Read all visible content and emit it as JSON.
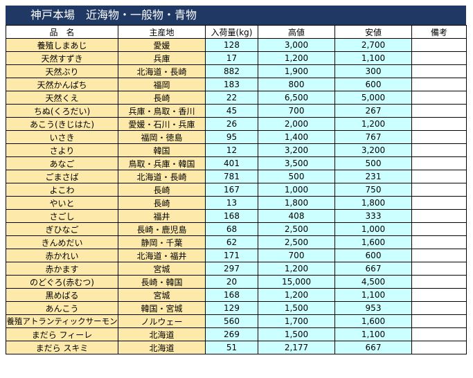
{
  "title": "神戸本場　近海物・一般物・青物",
  "headers": [
    "品　名",
    "主産地",
    "入荷量(kg)",
    "高値",
    "安値",
    "備考"
  ],
  "rows": [
    {
      "name": "養殖しまあじ",
      "origin": "愛媛",
      "qty": "128",
      "high": "3,000",
      "low": "2,700",
      "note": ""
    },
    {
      "name": "天然すずき",
      "origin": "兵庫",
      "qty": "17",
      "high": "1,200",
      "low": "1,100",
      "note": ""
    },
    {
      "name": "天然ぶり",
      "origin": "北海道・長崎",
      "qty": "882",
      "high": "1,900",
      "low": "300",
      "note": ""
    },
    {
      "name": "天然かんぱち",
      "origin": "福岡",
      "qty": "183",
      "high": "800",
      "low": "600",
      "note": ""
    },
    {
      "name": "天然くえ",
      "origin": "長崎",
      "qty": "22",
      "high": "6,500",
      "low": "5,000",
      "note": ""
    },
    {
      "name": "ちぬ(くろだい)",
      "origin": "兵庫・鳥取・香川",
      "qty": "45",
      "high": "700",
      "low": "267",
      "note": ""
    },
    {
      "name": "あこう(きじはた)",
      "origin": "愛媛・石川・兵庫",
      "qty": "26",
      "high": "2,000",
      "low": "1,200",
      "note": ""
    },
    {
      "name": "いさき",
      "origin": "福岡・徳島",
      "qty": "95",
      "high": "1,400",
      "low": "767",
      "note": ""
    },
    {
      "name": "さより",
      "origin": "韓国",
      "qty": "12",
      "high": "3,200",
      "low": "3,200",
      "note": ""
    },
    {
      "name": "あなご",
      "origin": "鳥取・兵庫・韓国",
      "qty": "401",
      "high": "3,500",
      "low": "500",
      "note": ""
    },
    {
      "name": "ごまさば",
      "origin": "北海道・長崎",
      "qty": "781",
      "high": "500",
      "low": "231",
      "note": ""
    },
    {
      "name": "よこわ",
      "origin": "長崎",
      "qty": "167",
      "high": "1,000",
      "low": "750",
      "note": ""
    },
    {
      "name": "やいと",
      "origin": "長崎",
      "qty": "13",
      "high": "1,800",
      "low": "1,800",
      "note": ""
    },
    {
      "name": "さごし",
      "origin": "福井",
      "qty": "168",
      "high": "408",
      "low": "333",
      "note": ""
    },
    {
      "name": "ぎひなご",
      "origin": "長崎・鹿児島",
      "qty": "68",
      "high": "2,500",
      "low": "1,000",
      "note": ""
    },
    {
      "name": "きんめだい",
      "origin": "静岡・千葉",
      "qty": "62",
      "high": "2,500",
      "low": "1,600",
      "note": ""
    },
    {
      "name": "赤かれい",
      "origin": "北海道・福井",
      "qty": "171",
      "high": "700",
      "low": "600",
      "note": ""
    },
    {
      "name": "赤かます",
      "origin": "宮城",
      "qty": "297",
      "high": "1,200",
      "low": "667",
      "note": ""
    },
    {
      "name": "のどぐろ(赤むつ)",
      "origin": "長崎・韓国",
      "qty": "20",
      "high": "15,000",
      "low": "4,500",
      "note": ""
    },
    {
      "name": "黒めばる",
      "origin": "宮城",
      "qty": "168",
      "high": "1,200",
      "low": "1,100",
      "note": ""
    },
    {
      "name": "あんこう",
      "origin": "韓国・宮城",
      "qty": "129",
      "high": "1,500",
      "low": "953",
      "note": ""
    },
    {
      "name": "養殖アトランティックサーモン",
      "origin": "ノルウェー",
      "qty": "560",
      "high": "1,700",
      "low": "1,600",
      "note": ""
    },
    {
      "name": "まだら フィーレ",
      "origin": "北海道",
      "qty": "269",
      "high": "1,500",
      "low": "1,100",
      "note": ""
    },
    {
      "name": "まだら スキミ",
      "origin": "北海道",
      "qty": "51",
      "high": "2,177",
      "low": "667",
      "note": ""
    }
  ]
}
